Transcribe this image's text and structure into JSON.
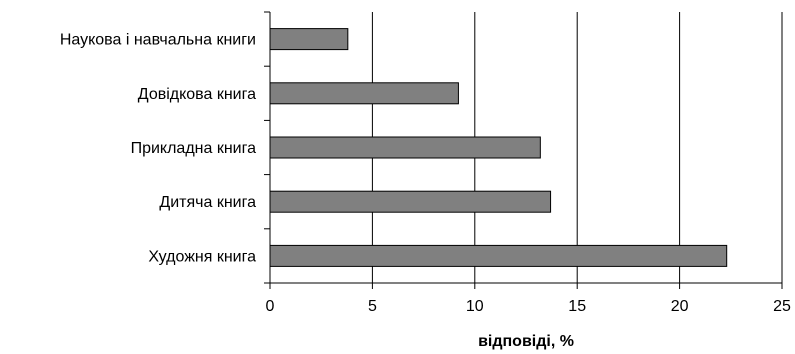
{
  "chart_data": {
    "type": "bar",
    "orientation": "horizontal",
    "categories": [
      "Наукова і навчальна книги",
      "Довідкова книга",
      "Прикладна книга",
      "Дитяча книга",
      "Художня книга"
    ],
    "values": [
      3.8,
      9.2,
      13.2,
      13.7,
      22.3
    ],
    "xlabel": "відповіді, %",
    "ylabel": "",
    "title": "",
    "xlim": [
      0,
      25
    ],
    "xticks": [
      "0",
      "5",
      "10",
      "15",
      "20",
      "25"
    ],
    "grid": "vertical",
    "legend": "none",
    "bar_color": "#808080",
    "bar_border_color": "#000000"
  }
}
